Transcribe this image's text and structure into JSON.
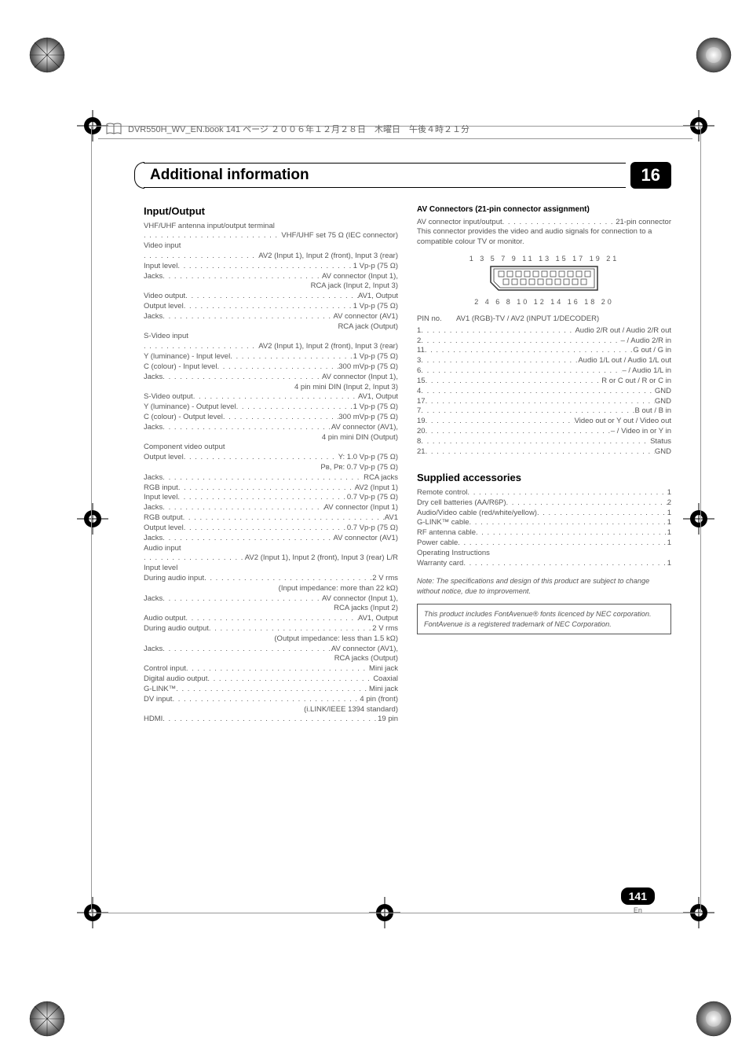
{
  "book_header": "DVR550H_WV_EN.book  141 ページ  ２００６年１２月２８日　木曜日　午後４時２１分",
  "chapter": {
    "title": "Additional information",
    "number": "16"
  },
  "page": {
    "number": "141",
    "lang": "En"
  },
  "left": {
    "heading": "Input/Output",
    "lines": [
      {
        "l": "VHF/UHF antenna input/output terminal"
      },
      {
        "l": "",
        "v": "VHF/UHF set 75 Ω (IEC connector)"
      },
      {
        "l": "Video input"
      },
      {
        "l": "",
        "v": "AV2 (Input 1), Input 2 (front), Input 3 (rear)"
      },
      {
        "l": "Input level",
        "v": "1 Vp-p (75 Ω)"
      },
      {
        "l": "Jacks",
        "v": "AV connector (Input 1),"
      },
      {
        "r": "RCA jack (Input 2, Input 3)"
      },
      {
        "l": "Video output",
        "v": "AV1, Output"
      },
      {
        "l": "Output level",
        "v": "1 Vp-p (75 Ω)"
      },
      {
        "l": "Jacks",
        "v": "AV connector (AV1)"
      },
      {
        "r": "RCA jack (Output)"
      },
      {
        "l": "S-Video input"
      },
      {
        "l": "",
        "v": "AV2 (Input 1), Input 2 (front), Input 3 (rear)"
      },
      {
        "l": "Y (luminance) - Input level",
        "v": "1 Vp-p (75 Ω)"
      },
      {
        "l": "C (colour) - Input level",
        "v": "300 mVp-p (75 Ω)"
      },
      {
        "l": "Jacks",
        "v": "AV connector (Input 1),"
      },
      {
        "r": "4 pin mini DIN (Input 2, Input 3)"
      },
      {
        "l": "S-Video output",
        "v": "AV1, Output"
      },
      {
        "l": "Y (luminance) - Output level",
        "v": "1 Vp-p (75 Ω)"
      },
      {
        "l": "C (colour) - Output level",
        "v": "300 mVp-p (75 Ω)"
      },
      {
        "l": "Jacks",
        "v": "AV connector (AV1),"
      },
      {
        "r": "4 pin mini DIN (Output)"
      },
      {
        "l": "Component video output"
      },
      {
        "l": "Output level",
        "v": "Y: 1.0 Vp-p (75 Ω)"
      },
      {
        "r": "Pʙ, Pʀ: 0.7 Vp-p (75 Ω)"
      },
      {
        "l": "Jacks",
        "v": "RCA jacks"
      },
      {
        "l": "RGB input",
        "v": "AV2 (Input 1)"
      },
      {
        "l": "Input level",
        "v": "0.7 Vp-p (75 Ω)"
      },
      {
        "l": "Jacks",
        "v": "AV connector (Input 1)"
      },
      {
        "l": "RGB output",
        "v": "AV1"
      },
      {
        "l": "Output level",
        "v": "0.7 Vp-p (75 Ω)"
      },
      {
        "l": "Jacks",
        "v": "AV connector (AV1)"
      },
      {
        "l": "Audio input"
      },
      {
        "l": "",
        "v": "AV2 (Input 1), Input 2 (front), Input 3 (rear) L/R"
      },
      {
        "l": "Input level"
      },
      {
        "l": "During audio input",
        "v": "2 V rms"
      },
      {
        "r": "(Input impedance: more than 22 kΩ)"
      },
      {
        "l": "Jacks",
        "v": "AV connector (Input 1),"
      },
      {
        "r": "RCA jacks (Input 2)"
      },
      {
        "l": "Audio output",
        "v": "AV1, Output"
      },
      {
        "l": "During audio output",
        "v": "2 V rms"
      },
      {
        "r": "(Output impedance: less than 1.5 kΩ)"
      },
      {
        "l": "Jacks",
        "v": "AV connector (AV1),"
      },
      {
        "r": "RCA jacks (Output)"
      },
      {
        "l": "Control input",
        "v": "Mini jack"
      },
      {
        "l": "Digital audio output",
        "v": "Coaxial"
      },
      {
        "l": "G-LINK™",
        "v": "Mini jack"
      },
      {
        "l": "DV input",
        "v": "4 pin (front)"
      },
      {
        "r": "(i.LINK/IEEE 1394 standard)"
      },
      {
        "l": "HDMI",
        "v": "19 pin"
      }
    ]
  },
  "right": {
    "av_heading": "AV Connectors (21-pin connector assignment)",
    "av_intro1": "AV connector input/output",
    "av_intro1v": "21-pin connector",
    "av_intro2": "This connector provides the video and audio signals for connection to a compatible colour TV or monitor.",
    "diagram_top": "1 3 5 7 9 11 13 15 17 19 21",
    "diagram_bottom": "2 4 6 8 10 12 14 16 18 20",
    "pin_header_l": "PIN no.",
    "pin_header_r": "AV1 (RGB)-TV / AV2 (INPUT 1/DECODER)",
    "pins": [
      {
        "n": "1",
        "v": "Audio 2/R out / Audio 2/R out"
      },
      {
        "n": "2",
        "v": "– / Audio 2/R in"
      },
      {
        "n": "11",
        "v": "G out / G in"
      },
      {
        "n": "3",
        "v": "Audio 1/L out / Audio 1/L out"
      },
      {
        "n": "6",
        "v": "– / Audio 1/L in"
      },
      {
        "n": "15",
        "v": "R or C out / R or C in"
      },
      {
        "n": "4",
        "v": "GND"
      },
      {
        "n": "17",
        "v": "GND"
      },
      {
        "n": "7",
        "v": "B out / B in"
      },
      {
        "n": "19",
        "v": "Video out or Y out / Video out"
      },
      {
        "n": "20",
        "v": "– / Video in or Y in"
      },
      {
        "n": "8",
        "v": "Status"
      },
      {
        "n": "21",
        "v": "GND"
      }
    ],
    "supplied_heading": "Supplied accessories",
    "supplied": [
      {
        "l": "Remote control",
        "v": "1"
      },
      {
        "l": "Dry cell batteries (AA/R6P)",
        "v": "2"
      },
      {
        "l": "Audio/Video cable (red/white/yellow)",
        "v": "1"
      },
      {
        "l": "G-LINK™ cable",
        "v": "1"
      },
      {
        "l": "RF antenna cable",
        "v": "1"
      },
      {
        "l": "Power cable",
        "v": "1"
      },
      {
        "l": "Operating Instructions"
      },
      {
        "l": "Warranty card",
        "v": "1"
      }
    ],
    "note": "Note: The specifications and design of this product are subject to change without notice, due to improvement.",
    "box": "This product includes FontAvenue® fonts licenced by NEC corporation. FontAvenue is a registered trademark of NEC Corporation."
  }
}
